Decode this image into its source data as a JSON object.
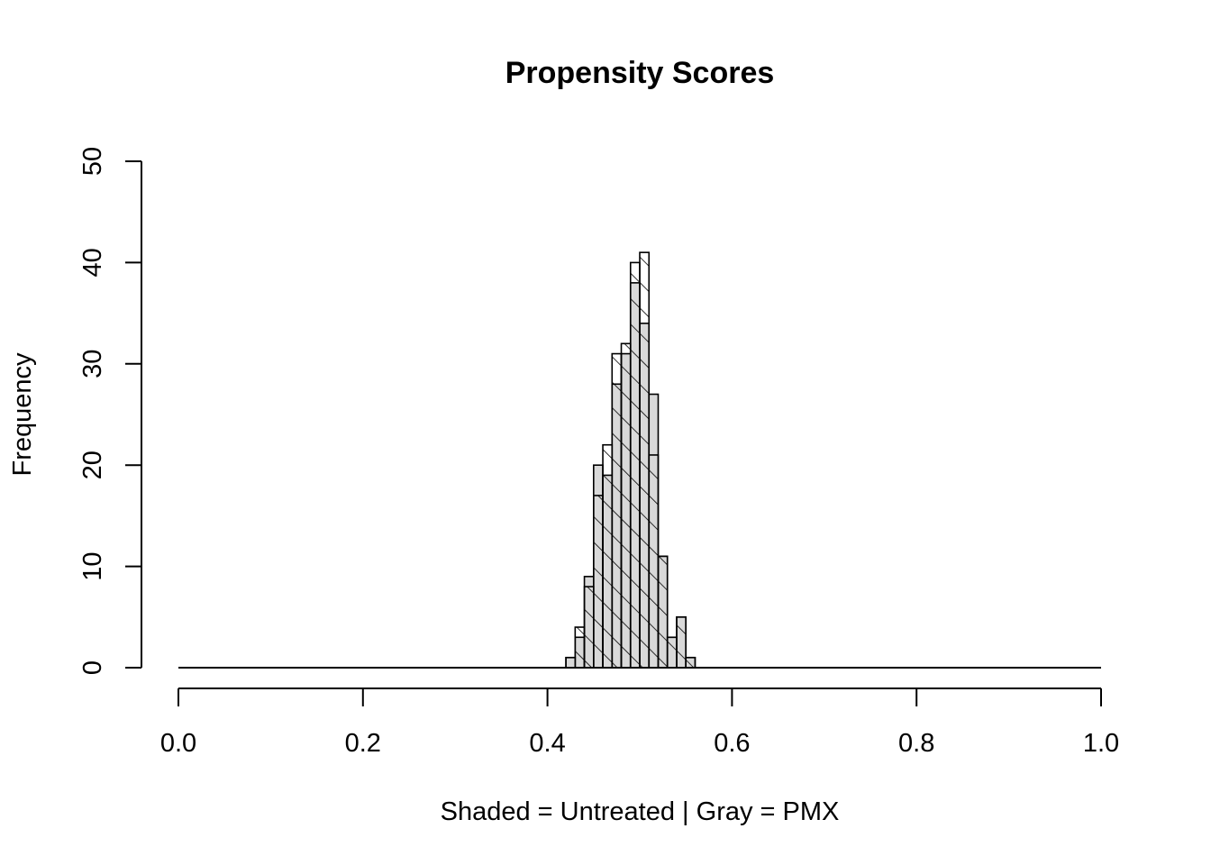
{
  "chart_data": {
    "type": "bar",
    "title": "Propensity Scores",
    "xlabel": "Shaded = Untreated | Gray = PMX",
    "ylabel": "Frequency",
    "xlim": [
      0,
      1
    ],
    "ylim": [
      0,
      50
    ],
    "x_ticks": [
      "0.0",
      "0.2",
      "0.4",
      "0.6",
      "0.8",
      "1.0"
    ],
    "y_ticks": [
      "0",
      "10",
      "20",
      "30",
      "40",
      "50"
    ],
    "bin_width": 0.01,
    "bin_starts": [
      0.42,
      0.43,
      0.44,
      0.45,
      0.46,
      0.47,
      0.48,
      0.49,
      0.5,
      0.51,
      0.52,
      0.53,
      0.54,
      0.55
    ],
    "series": [
      {
        "name": "Untreated",
        "style": "hatched",
        "values": [
          1,
          4,
          8,
          17,
          22,
          31,
          32,
          40,
          41,
          21,
          11,
          3,
          5,
          1
        ]
      },
      {
        "name": "PMX",
        "style": "gray",
        "color": "#d9d9d9",
        "values": [
          1,
          3,
          9,
          20,
          19,
          28,
          31,
          38,
          34,
          27,
          11,
          3,
          5,
          1
        ]
      }
    ],
    "grid": false
  }
}
